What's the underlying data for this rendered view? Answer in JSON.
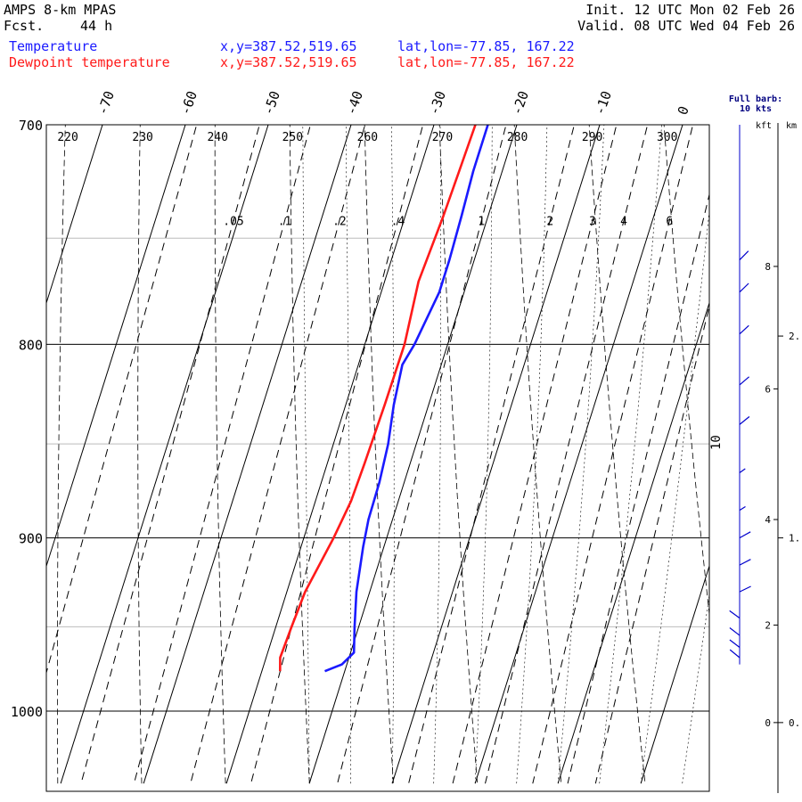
{
  "header": {
    "model": "AMPS 8-km MPAS",
    "fcst_label": "Fcst.",
    "fcst_value": "44 h",
    "init": "Init. 12 UTC Mon 02 Feb 26",
    "valid": "Valid. 08 UTC Wed 04 Feb 26"
  },
  "legend": [
    {
      "name": "Temperature",
      "xy": "x,y=387.52,519.65",
      "latlon": "lat,lon=-77.85, 167.22",
      "color": "#1a1aff"
    },
    {
      "name": "Dewpoint temperature",
      "xy": "x,y=387.52,519.65",
      "latlon": "lat,lon=-77.85, 167.22",
      "color": "#ff1a1a"
    }
  ],
  "wind_panel": {
    "title_line1": "Full barb:",
    "title_line2": "10 kts",
    "kft_label": "kft",
    "km_label": "km"
  },
  "chart_data": {
    "type": "line",
    "chart_kind": "skew-T log-P sounding",
    "y_axis": {
      "scale": "log",
      "units": "hPa",
      "range": [
        1040,
        700
      ],
      "ticks": [
        700,
        800,
        900,
        1000
      ],
      "gridlines_hPa": [
        700,
        750,
        800,
        850,
        900,
        950,
        1000
      ]
    },
    "temperature_ticks_C": [
      -70,
      -60,
      -50,
      -40,
      -30,
      -20,
      -10,
      0
    ],
    "potential_temperature_labels_K": [
      220,
      230,
      240,
      250,
      260,
      270,
      280,
      290,
      300
    ],
    "mixing_ratio_labels": [
      ".05",
      ".1",
      ".2",
      ".4",
      "1",
      "2",
      "3",
      "4",
      "6"
    ],
    "mixing_ratio_values": [
      0.05,
      0.1,
      0.2,
      0.4,
      1,
      2,
      3,
      4,
      6
    ],
    "moist_adiabat_label": "10",
    "series": [
      {
        "name": "Temperature",
        "color": "#1a1aff",
        "points": [
          {
            "p": 700,
            "t": -23.5
          },
          {
            "p": 720,
            "t": -23.5
          },
          {
            "p": 740,
            "t": -23.2
          },
          {
            "p": 760,
            "t": -23.0
          },
          {
            "p": 775,
            "t": -23.0
          },
          {
            "p": 800,
            "t": -24.0
          },
          {
            "p": 810,
            "t": -24.7
          },
          {
            "p": 830,
            "t": -24.2
          },
          {
            "p": 850,
            "t": -23.4
          },
          {
            "p": 870,
            "t": -23.0
          },
          {
            "p": 890,
            "t": -22.9
          },
          {
            "p": 905,
            "t": -22.5
          },
          {
            "p": 930,
            "t": -21.6
          },
          {
            "p": 950,
            "t": -20.5
          },
          {
            "p": 965,
            "t": -19.6
          },
          {
            "p": 972,
            "t": -20.6
          },
          {
            "p": 976,
            "t": -22.4
          }
        ]
      },
      {
        "name": "Dewpoint temperature",
        "color": "#ff1a1a",
        "points": [
          {
            "p": 700,
            "t": -25.0
          },
          {
            "p": 720,
            "t": -25.2
          },
          {
            "p": 740,
            "t": -25.4
          },
          {
            "p": 770,
            "t": -25.9
          },
          {
            "p": 800,
            "t": -25.2
          },
          {
            "p": 830,
            "t": -25.3
          },
          {
            "p": 860,
            "t": -25.5
          },
          {
            "p": 880,
            "t": -25.7
          },
          {
            "p": 900,
            "t": -26.4
          },
          {
            "p": 930,
            "t": -27.8
          },
          {
            "p": 950,
            "t": -28.1
          },
          {
            "p": 968,
            "t": -28.3
          },
          {
            "p": 976,
            "t": -27.8
          }
        ]
      }
    ],
    "height_axis": {
      "kft_ticks": [
        0,
        2,
        4,
        6,
        8
      ],
      "kft_pressure_hPa": [
        1007,
        949,
        890,
        822,
        763
      ],
      "km_ticks": [
        "0.",
        "1.",
        "2."
      ],
      "km_pressure_hPa": [
        1007,
        900,
        796
      ]
    },
    "wind_barbs": [
      {
        "p": 760,
        "speed_kt": 10,
        "dir_deg": 60
      },
      {
        "p": 775,
        "speed_kt": 10,
        "dir_deg": 55
      },
      {
        "p": 795,
        "speed_kt": 10,
        "dir_deg": 50
      },
      {
        "p": 820,
        "speed_kt": 10,
        "dir_deg": 45
      },
      {
        "p": 840,
        "speed_kt": 10,
        "dir_deg": 40
      },
      {
        "p": 865,
        "speed_kt": 5,
        "dir_deg": 30
      },
      {
        "p": 885,
        "speed_kt": 5,
        "dir_deg": 20
      },
      {
        "p": 900,
        "speed_kt": 10,
        "dir_deg": 10
      },
      {
        "p": 915,
        "speed_kt": 10,
        "dir_deg": 5
      },
      {
        "p": 930,
        "speed_kt": 10,
        "dir_deg": 0
      },
      {
        "p": 945,
        "speed_kt": 10,
        "dir_deg": 355
      },
      {
        "p": 955,
        "speed_kt": 10,
        "dir_deg": 350
      },
      {
        "p": 962,
        "speed_kt": 10,
        "dir_deg": 350
      },
      {
        "p": 968,
        "speed_kt": 10,
        "dir_deg": 345
      }
    ]
  }
}
